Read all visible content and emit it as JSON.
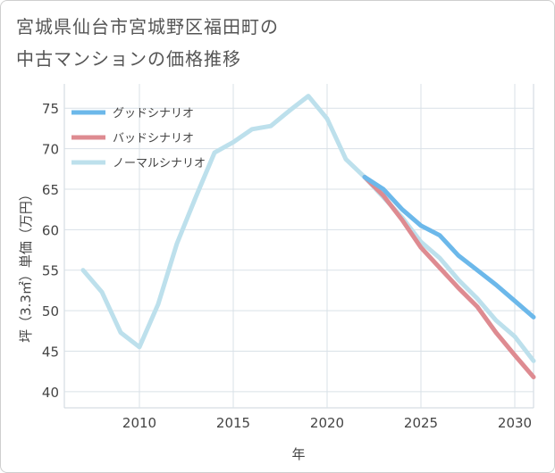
{
  "chart_data": {
    "type": "line",
    "title_line1": "宮城県仙台市宮城野区福田町の",
    "title_line2": "中古マンションの価格推移",
    "xlabel": "年",
    "ylabel": "坪（3.3㎡）単価（万円）",
    "xlim": [
      2006,
      2031
    ],
    "ylim": [
      38,
      78
    ],
    "xticks": [
      2010,
      2015,
      2020,
      2025,
      2030
    ],
    "yticks": [
      40,
      45,
      50,
      55,
      60,
      65,
      70,
      75
    ],
    "legend_position": "top-left",
    "series": [
      {
        "name": "グッドシナリオ",
        "color": "#6cb8ea",
        "x": [
          2022,
          2023,
          2024,
          2025,
          2026,
          2027,
          2028,
          2029,
          2030,
          2031
        ],
        "y": [
          66.5,
          65.0,
          62.5,
          60.5,
          59.3,
          56.8,
          55.0,
          53.2,
          51.2,
          49.2
        ]
      },
      {
        "name": "バッドシナリオ",
        "color": "#de8b91",
        "x": [
          2022,
          2023,
          2024,
          2025,
          2026,
          2027,
          2028,
          2029,
          2030,
          2031
        ],
        "y": [
          66.5,
          64.2,
          61.2,
          57.8,
          55.3,
          52.8,
          50.5,
          47.3,
          44.5,
          41.8
        ]
      },
      {
        "name": "ノーマルシナリオ",
        "color": "#bde0ec",
        "x": [
          2007,
          2008,
          2009,
          2010,
          2011,
          2012,
          2013,
          2014,
          2015,
          2016,
          2017,
          2018,
          2019,
          2020,
          2021,
          2022,
          2023,
          2024,
          2025,
          2026,
          2027,
          2028,
          2029,
          2030,
          2031
        ],
        "y": [
          55.0,
          52.3,
          47.3,
          45.5,
          50.8,
          58.3,
          64.0,
          69.5,
          70.8,
          72.4,
          72.8,
          74.7,
          76.5,
          73.7,
          68.7,
          66.5,
          64.0,
          61.5,
          58.5,
          56.5,
          53.8,
          51.5,
          48.8,
          46.8,
          43.8
        ]
      }
    ]
  }
}
